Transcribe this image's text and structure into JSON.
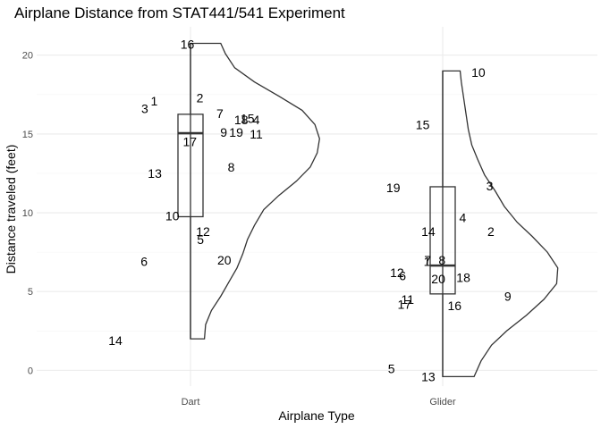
{
  "chart_data": {
    "type": "boxplot-halfviolin-labeled-points",
    "title": "Airplane Distance from STAT441/541 Experiment",
    "xlabel": "Airplane Type",
    "ylabel": "Distance traveled (feet)",
    "categories": [
      "Dart",
      "Glider"
    ],
    "ylim": [
      -1.0,
      21.8
    ],
    "yticks": [
      0,
      5,
      10,
      15,
      20
    ],
    "grid": true,
    "legend": "none",
    "series": [
      {
        "category": "Dart",
        "box": {
          "min": 2.0,
          "q1": 9.75,
          "median": 15.05,
          "q3": 16.25,
          "max": 20.75
        },
        "points": [
          {
            "label": "1",
            "y": 17.1,
            "jitter": -0.58
          },
          {
            "label": "2",
            "y": 17.3,
            "jitter": 0.15
          },
          {
            "label": "3",
            "y": 16.6,
            "jitter": -0.73
          },
          {
            "label": "4",
            "y": 15.9,
            "jitter": 1.05
          },
          {
            "label": "5",
            "y": 8.3,
            "jitter": 0.16
          },
          {
            "label": "6",
            "y": 6.9,
            "jitter": -0.74
          },
          {
            "label": "7",
            "y": 16.3,
            "jitter": 0.47
          },
          {
            "label": "8",
            "y": 12.9,
            "jitter": 0.65
          },
          {
            "label": "9",
            "y": 15.1,
            "jitter": 0.53
          },
          {
            "label": "10",
            "y": 9.8,
            "jitter": -0.29
          },
          {
            "label": "11",
            "y": 15.0,
            "jitter": 1.05
          },
          {
            "label": "12",
            "y": 8.8,
            "jitter": 0.2
          },
          {
            "label": "13",
            "y": 12.5,
            "jitter": -0.57
          },
          {
            "label": "14",
            "y": 1.9,
            "jitter": -1.2
          },
          {
            "label": "15",
            "y": 16.0,
            "jitter": 0.91
          },
          {
            "label": "16",
            "y": 20.7,
            "jitter": -0.05
          },
          {
            "label": "17",
            "y": 14.5,
            "jitter": -0.01
          },
          {
            "label": "18",
            "y": 15.9,
            "jitter": 0.81
          },
          {
            "label": "19",
            "y": 15.1,
            "jitter": 0.73
          },
          {
            "label": "20",
            "y": 7.0,
            "jitter": 0.54
          }
        ],
        "density": [
          [
            2.0,
            0.12
          ],
          [
            2.0,
            0.12
          ],
          [
            2.9,
            0.13
          ],
          [
            3.8,
            0.18
          ],
          [
            4.7,
            0.26
          ],
          [
            5.6,
            0.33
          ],
          [
            6.5,
            0.4
          ],
          [
            7.4,
            0.45
          ],
          [
            8.3,
            0.49
          ],
          [
            9.2,
            0.55
          ],
          [
            10.2,
            0.63
          ],
          [
            11.1,
            0.76
          ],
          [
            12.0,
            0.91
          ],
          [
            12.9,
            1.03
          ],
          [
            13.8,
            1.09
          ],
          [
            14.7,
            1.11
          ],
          [
            15.6,
            1.07
          ],
          [
            16.5,
            0.96
          ],
          [
            17.4,
            0.76
          ],
          [
            18.3,
            0.55
          ],
          [
            19.2,
            0.38
          ],
          [
            20.1,
            0.3
          ],
          [
            20.75,
            0.26
          ]
        ]
      },
      {
        "category": "Glider",
        "box": {
          "min": -0.4,
          "q1": 4.85,
          "median": 6.65,
          "q3": 11.65,
          "max": 19.0
        },
        "points": [
          {
            "label": "1",
            "y": 6.9,
            "jitter": -0.25
          },
          {
            "label": "2",
            "y": 8.8,
            "jitter": 0.77
          },
          {
            "label": "3",
            "y": 11.7,
            "jitter": 0.75
          },
          {
            "label": "4",
            "y": 9.7,
            "jitter": 0.32
          },
          {
            "label": "5",
            "y": 0.1,
            "jitter": -0.82
          },
          {
            "label": "6",
            "y": 6.0,
            "jitter": -0.64
          },
          {
            "label": "7",
            "y": 7.0,
            "jitter": -0.24
          },
          {
            "label": "8",
            "y": 7.0,
            "jitter": -0.01
          },
          {
            "label": "9",
            "y": 4.7,
            "jitter": 1.04
          },
          {
            "label": "10",
            "y": 18.9,
            "jitter": 0.57
          },
          {
            "label": "11",
            "y": 4.5,
            "jitter": -0.56
          },
          {
            "label": "12",
            "y": 6.2,
            "jitter": -0.73
          },
          {
            "label": "13",
            "y": -0.4,
            "jitter": -0.23
          },
          {
            "label": "14",
            "y": 8.8,
            "jitter": -0.23
          },
          {
            "label": "15",
            "y": 15.6,
            "jitter": -0.32
          },
          {
            "label": "16",
            "y": 4.1,
            "jitter": 0.19
          },
          {
            "label": "17",
            "y": 4.2,
            "jitter": -0.61
          },
          {
            "label": "18",
            "y": 5.9,
            "jitter": 0.33
          },
          {
            "label": "19",
            "y": 11.6,
            "jitter": -0.79
          },
          {
            "label": "20",
            "y": 5.8,
            "jitter": -0.07
          }
        ],
        "density": [
          [
            -0.4,
            0.27
          ],
          [
            -0.4,
            0.27
          ],
          [
            0.6,
            0.33
          ],
          [
            1.6,
            0.42
          ],
          [
            2.5,
            0.55
          ],
          [
            3.5,
            0.72
          ],
          [
            4.5,
            0.87
          ],
          [
            5.5,
            0.98
          ],
          [
            6.5,
            0.99
          ],
          [
            7.5,
            0.9
          ],
          [
            8.5,
            0.77
          ],
          [
            9.4,
            0.64
          ],
          [
            10.4,
            0.53
          ],
          [
            11.4,
            0.45
          ],
          [
            12.4,
            0.36
          ],
          [
            13.4,
            0.3
          ],
          [
            14.3,
            0.25
          ],
          [
            15.3,
            0.22
          ],
          [
            16.3,
            0.2
          ],
          [
            17.3,
            0.18
          ],
          [
            18.3,
            0.16
          ],
          [
            19.0,
            0.15
          ]
        ]
      }
    ]
  }
}
